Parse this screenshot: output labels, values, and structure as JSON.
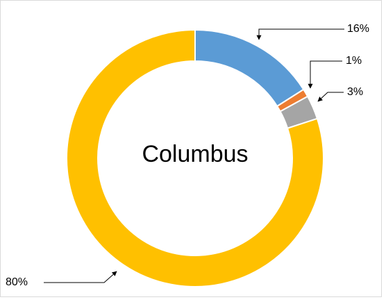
{
  "chart_data": {
    "type": "donut",
    "center_label": "Columbus",
    "values": [
      16,
      1,
      3,
      80
    ],
    "value_labels": [
      "16%",
      "1%",
      "3%",
      "80%"
    ],
    "colors": [
      "#5b9bd5",
      "#ed7d31",
      "#a5a5a5",
      "#ffc000"
    ]
  }
}
